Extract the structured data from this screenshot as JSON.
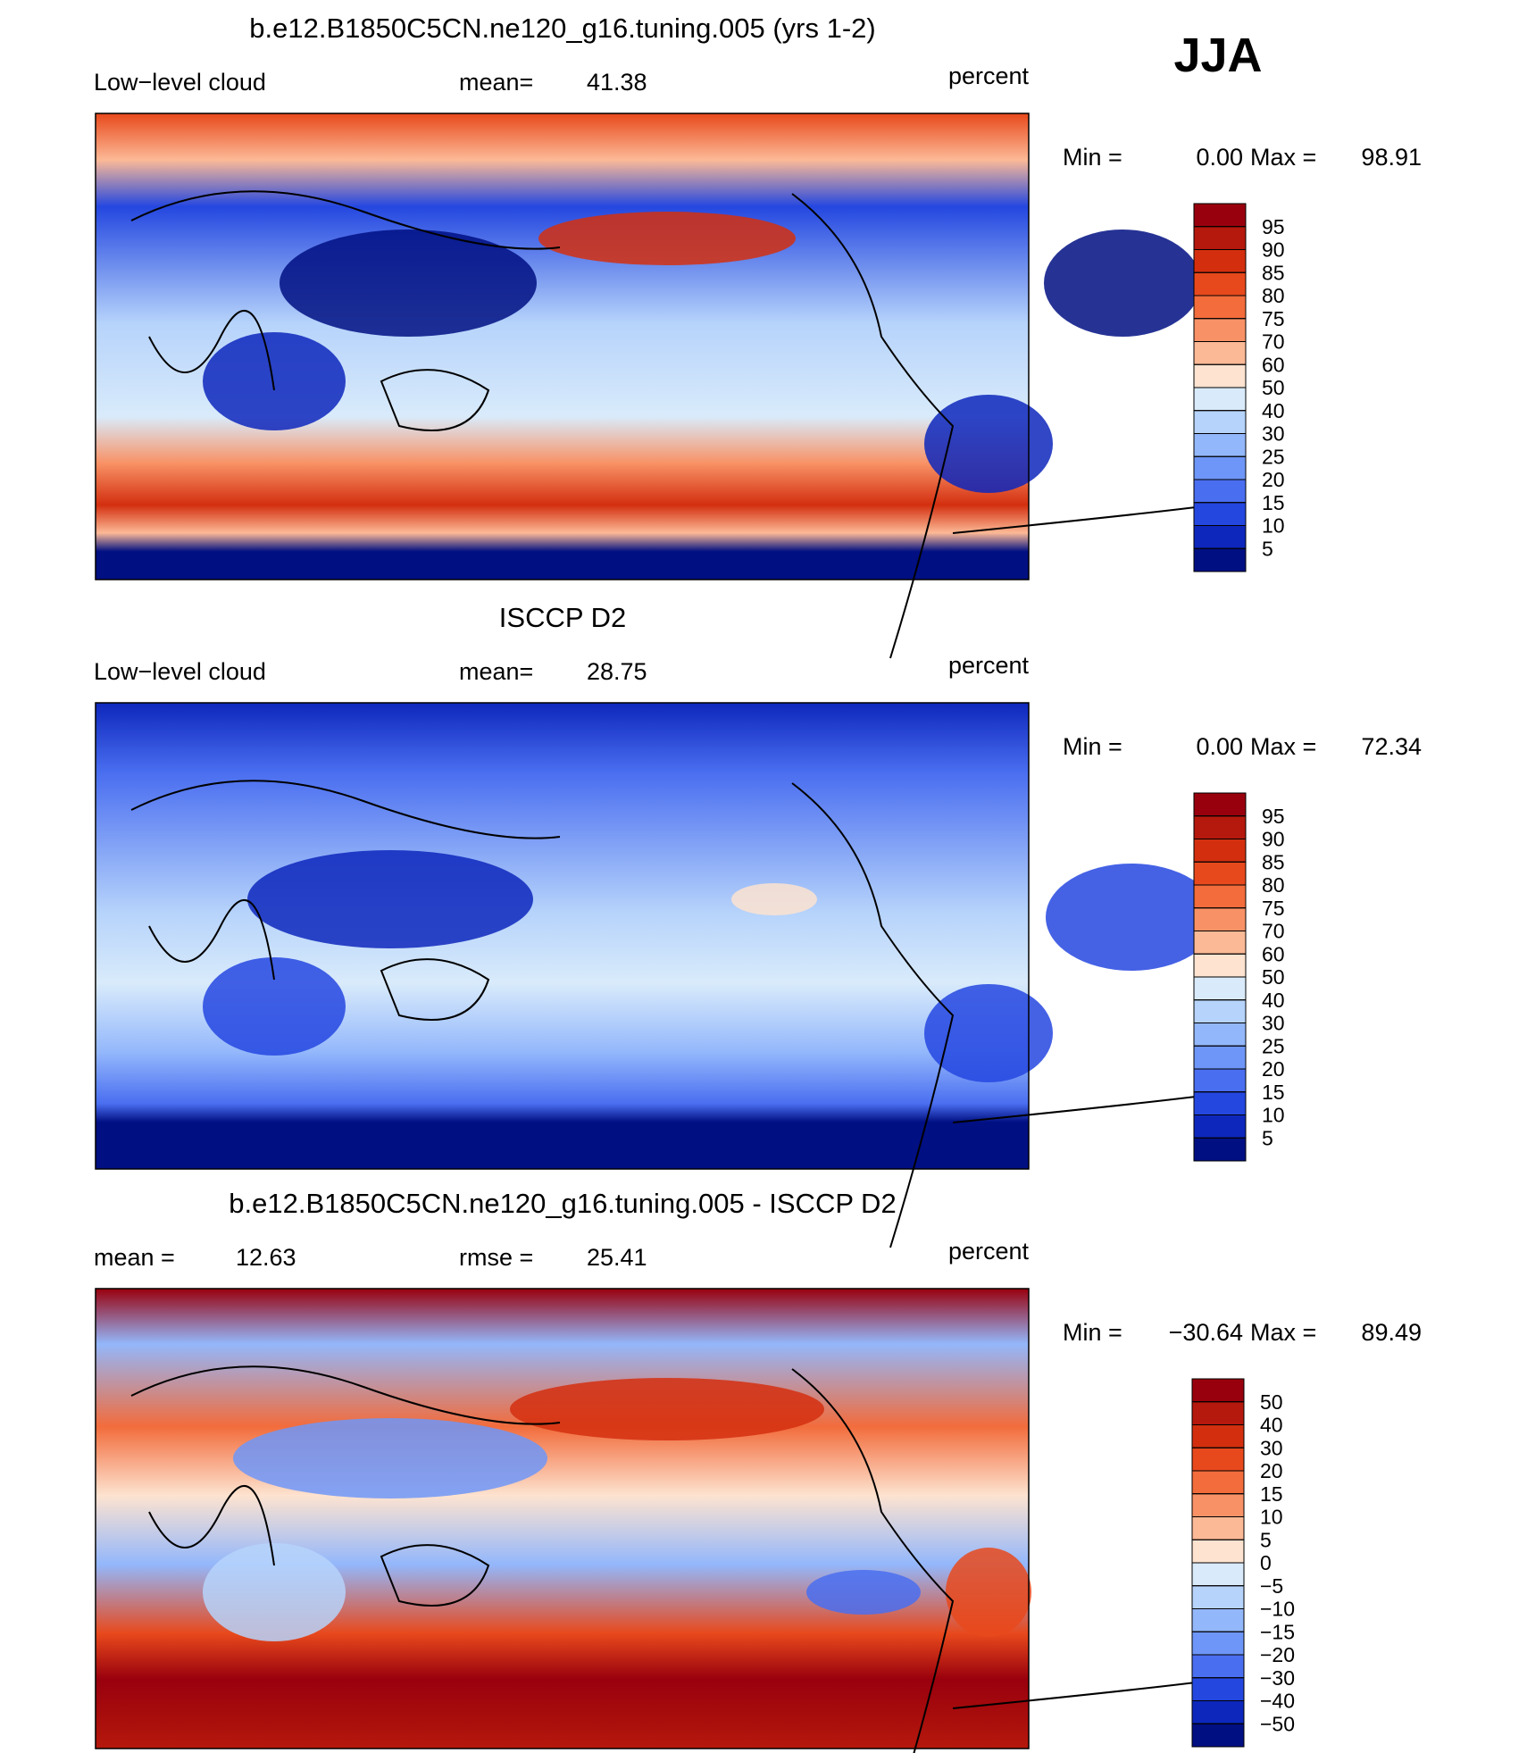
{
  "header": {
    "season": "JJA"
  },
  "panels": [
    {
      "title": "b.e12.B1850C5CN.ne120_g16.tuning.005 (yrs 1-2)",
      "left": "Low−level cloud",
      "center": {
        "label": "mean=",
        "value": 41.38
      },
      "units": "percent",
      "min_label": "Min =",
      "min": "0.00",
      "max_label": "Max =",
      "max": 98.91,
      "colorbar": {
        "levels": [
          95,
          90,
          85,
          80,
          75,
          70,
          60,
          50,
          40,
          30,
          25,
          20,
          15,
          10,
          5
        ],
        "colors": [
          "#99000d",
          "#b5180c",
          "#d32f0f",
          "#e8491c",
          "#f26c3c",
          "#f89266",
          "#fcb996",
          "#fde3d0",
          "#d9ebfb",
          "#b6d3fb",
          "#93b7fb",
          "#6e96f8",
          "#4a6ef0",
          "#2447e0",
          "#0d27bc",
          "#000f82"
        ]
      }
    },
    {
      "title": "ISCCP D2",
      "left": "Low−level cloud",
      "center": {
        "label": "mean=",
        "value": 28.75
      },
      "units": "percent",
      "min_label": "Min =",
      "min": "0.00",
      "max_label": "Max =",
      "max": 72.34,
      "colorbar": {
        "levels": [
          95,
          90,
          85,
          80,
          75,
          70,
          60,
          50,
          40,
          30,
          25,
          20,
          15,
          10,
          5
        ],
        "colors": [
          "#99000d",
          "#b5180c",
          "#d32f0f",
          "#e8491c",
          "#f26c3c",
          "#f89266",
          "#fcb996",
          "#fde3d0",
          "#d9ebfb",
          "#b6d3fb",
          "#93b7fb",
          "#6e96f8",
          "#4a6ef0",
          "#2447e0",
          "#0d27bc",
          "#000f82"
        ]
      }
    },
    {
      "title": "b.e12.B1850C5CN.ne120_g16.tuning.005 - ISCCP D2",
      "left": {
        "label": "mean =",
        "value": 12.63
      },
      "center": {
        "label": "rmse =",
        "value": 25.41
      },
      "units": "percent",
      "min_label": "Min =",
      "min": {
        "value": -30.64,
        "label": "−30.64"
      },
      "max_label": "Max =",
      "max": 89.49,
      "colorbar": {
        "levels": [
          50,
          40,
          30,
          20,
          15,
          10,
          5,
          0,
          {
            "value": -5,
            "label": "−5"
          },
          {
            "value": -10,
            "label": "−10"
          },
          {
            "value": -15,
            "label": "−15"
          },
          {
            "value": -20,
            "label": "−20"
          },
          {
            "value": -30,
            "label": "−30"
          },
          {
            "value": -40,
            "label": "−40"
          },
          {
            "value": -50,
            "label": "−50"
          }
        ],
        "colors": [
          "#99000d",
          "#b5180c",
          "#d32f0f",
          "#e8491c",
          "#f26c3c",
          "#f89266",
          "#fcb996",
          "#fde3d0",
          "#d9ebfb",
          "#b6d3fb",
          "#93b7fb",
          "#6e96f8",
          "#4a6ef0",
          "#2447e0",
          "#0d27bc",
          "#000f82"
        ]
      }
    }
  ]
}
